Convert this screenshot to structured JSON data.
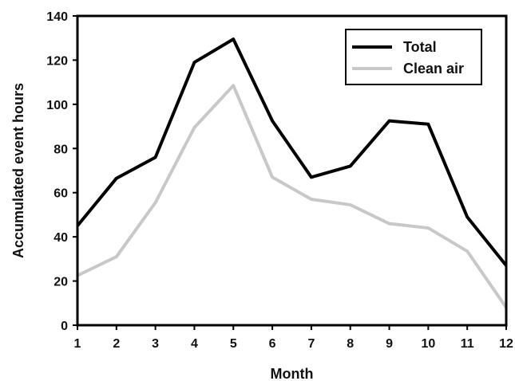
{
  "chart_data": {
    "type": "line",
    "title": "",
    "xlabel": "Month",
    "ylabel": "Accumulated event hours",
    "x": [
      1,
      2,
      3,
      4,
      5,
      6,
      7,
      8,
      9,
      10,
      11,
      12
    ],
    "xlim": [
      1,
      12
    ],
    "ylim": [
      0,
      140
    ],
    "yticks": [
      0,
      20,
      40,
      60,
      80,
      100,
      120,
      140
    ],
    "grid": false,
    "legend_position": "top-right",
    "series": [
      {
        "name": "Total",
        "color": "#000000",
        "values": [
          45,
          66.5,
          76,
          119,
          129.5,
          92.5,
          67,
          72,
          92.5,
          91,
          49,
          27
        ]
      },
      {
        "name": "Clean air",
        "color": "#c8c8c8",
        "values": [
          22.5,
          31,
          55.5,
          89.5,
          108.5,
          67,
          57,
          54.5,
          46,
          44,
          33.5,
          8
        ]
      }
    ]
  }
}
